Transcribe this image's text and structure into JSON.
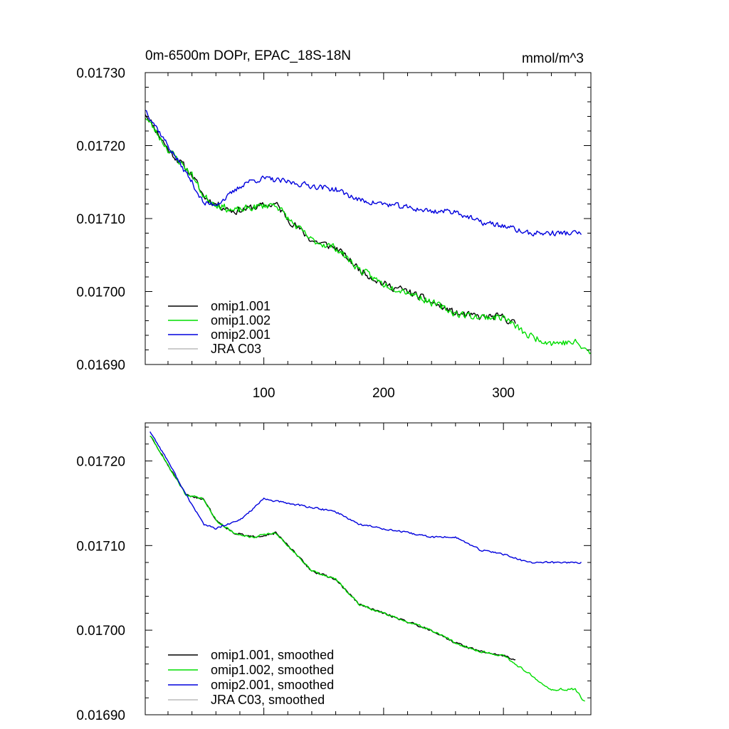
{
  "chart_data": [
    {
      "type": "line",
      "title_left": "0m-6500m DOPr, EPAC_18S-18N",
      "title_right": "mmol/m^3",
      "xlim": [
        1,
        373
      ],
      "ylim": [
        0.0169,
        0.0173
      ],
      "xticks": [
        100,
        200,
        300
      ],
      "xtick_labels": [
        "100",
        "200",
        "300"
      ],
      "yticks": [
        0.0169,
        0.017,
        0.0171,
        0.0172,
        0.0173
      ],
      "ytick_labels": [
        "0.01690",
        "0.01700",
        "0.01710",
        "0.01720",
        "0.01730"
      ],
      "series": [
        {
          "name": "omip1.001",
          "color": "#000000",
          "n": 310,
          "noise": 4.5e-06,
          "seed": 11,
          "knots": [
            [
              1,
              0.017245
            ],
            [
              20,
              0.017195
            ],
            [
              40,
              0.01716
            ],
            [
              50,
              0.01713
            ],
            [
              60,
              0.01712
            ],
            [
              75,
              0.01711
            ],
            [
              90,
              0.017115
            ],
            [
              110,
              0.01712
            ],
            [
              120,
              0.0171
            ],
            [
              140,
              0.01707
            ],
            [
              160,
              0.01706
            ],
            [
              180,
              0.01703
            ],
            [
              200,
              0.01701
            ],
            [
              220,
              0.017
            ],
            [
              240,
              0.016985
            ],
            [
              260,
              0.01697
            ],
            [
              280,
              0.016965
            ],
            [
              300,
              0.016965
            ],
            [
              310,
              0.016955
            ]
          ]
        },
        {
          "name": "omip1.002",
          "color": "#00dd00",
          "n": 373,
          "noise": 4.5e-06,
          "seed": 23,
          "knots": [
            [
              1,
              0.01724
            ],
            [
              20,
              0.017195
            ],
            [
              40,
              0.01716
            ],
            [
              50,
              0.01713
            ],
            [
              60,
              0.01712
            ],
            [
              75,
              0.01711
            ],
            [
              90,
              0.017115
            ],
            [
              110,
              0.01712
            ],
            [
              120,
              0.0171
            ],
            [
              140,
              0.01707
            ],
            [
              160,
              0.01706
            ],
            [
              180,
              0.01703
            ],
            [
              200,
              0.01701
            ],
            [
              220,
              0.017
            ],
            [
              240,
              0.016985
            ],
            [
              260,
              0.01697
            ],
            [
              280,
              0.016965
            ],
            [
              300,
              0.016965
            ],
            [
              320,
              0.01694
            ],
            [
              340,
              0.01693
            ],
            [
              360,
              0.01693
            ],
            [
              373,
              0.016915
            ]
          ]
        },
        {
          "name": "omip2.001",
          "color": "#0000dd",
          "n": 365,
          "noise": 3.5e-06,
          "seed": 37,
          "knots": [
            [
              1,
              0.01725
            ],
            [
              20,
              0.0172
            ],
            [
              40,
              0.01715
            ],
            [
              50,
              0.01712
            ],
            [
              60,
              0.01712
            ],
            [
              70,
              0.01713
            ],
            [
              85,
              0.01715
            ],
            [
              100,
              0.017155
            ],
            [
              120,
              0.01715
            ],
            [
              140,
              0.017145
            ],
            [
              160,
              0.01714
            ],
            [
              180,
              0.017125
            ],
            [
              200,
              0.01712
            ],
            [
              220,
              0.017115
            ],
            [
              240,
              0.01711
            ],
            [
              260,
              0.01711
            ],
            [
              280,
              0.017095
            ],
            [
              300,
              0.01709
            ],
            [
              320,
              0.01708
            ],
            [
              340,
              0.01708
            ],
            [
              365,
              0.01708
            ]
          ]
        },
        {
          "name": "JRA C03",
          "color": "#bbbbbb",
          "n": 0,
          "noise": 0,
          "seed": 1,
          "knots": []
        }
      ],
      "legend": [
        "omip1.001",
        "omip1.002",
        "omip2.001",
        "JRA C03"
      ]
    },
    {
      "type": "line",
      "xlim": [
        1,
        373
      ],
      "ylim": [
        0.0169,
        0.017245
      ],
      "xticks": [
        100,
        200,
        300
      ],
      "yticks": [
        0.0169,
        0.017,
        0.0171,
        0.0172
      ],
      "ytick_labels": [
        "0.01690",
        "0.01700",
        "0.01710",
        "0.01720"
      ],
      "series": [
        {
          "name": "omip1.001, smoothed",
          "color": "#000000",
          "n": 310,
          "noise": 1.2e-06,
          "seed": 51,
          "knots": [
            [
              5,
              0.01723
            ],
            [
              20,
              0.017195
            ],
            [
              35,
              0.01716
            ],
            [
              50,
              0.017155
            ],
            [
              60,
              0.01713
            ],
            [
              75,
              0.017115
            ],
            [
              90,
              0.01711
            ],
            [
              110,
              0.017115
            ],
            [
              120,
              0.0171
            ],
            [
              140,
              0.01707
            ],
            [
              160,
              0.01706
            ],
            [
              180,
              0.01703
            ],
            [
              200,
              0.01702
            ],
            [
              220,
              0.01701
            ],
            [
              240,
              0.017
            ],
            [
              260,
              0.016985
            ],
            [
              280,
              0.016975
            ],
            [
              300,
              0.01697
            ],
            [
              310,
              0.016965
            ]
          ]
        },
        {
          "name": "omip1.002, smoothed",
          "color": "#00dd00",
          "n": 368,
          "noise": 1.2e-06,
          "seed": 63,
          "knots": [
            [
              5,
              0.01723
            ],
            [
              20,
              0.017195
            ],
            [
              35,
              0.01716
            ],
            [
              50,
              0.017155
            ],
            [
              60,
              0.01713
            ],
            [
              75,
              0.017115
            ],
            [
              90,
              0.01711
            ],
            [
              110,
              0.017115
            ],
            [
              120,
              0.0171
            ],
            [
              140,
              0.01707
            ],
            [
              160,
              0.01706
            ],
            [
              180,
              0.01703
            ],
            [
              200,
              0.01702
            ],
            [
              220,
              0.01701
            ],
            [
              240,
              0.017
            ],
            [
              260,
              0.016985
            ],
            [
              280,
              0.016975
            ],
            [
              300,
              0.01697
            ],
            [
              320,
              0.01695
            ],
            [
              340,
              0.01693
            ],
            [
              360,
              0.01693
            ],
            [
              368,
              0.016915
            ]
          ]
        },
        {
          "name": "omip2.001, smoothed",
          "color": "#0000dd",
          "n": 365,
          "noise": 1e-06,
          "seed": 77,
          "knots": [
            [
              5,
              0.017235
            ],
            [
              20,
              0.0172
            ],
            [
              35,
              0.01716
            ],
            [
              50,
              0.017125
            ],
            [
              60,
              0.01712
            ],
            [
              80,
              0.01713
            ],
            [
              100,
              0.017155
            ],
            [
              120,
              0.01715
            ],
            [
              140,
              0.017145
            ],
            [
              160,
              0.01714
            ],
            [
              180,
              0.017125
            ],
            [
              200,
              0.01712
            ],
            [
              220,
              0.017115
            ],
            [
              240,
              0.01711
            ],
            [
              260,
              0.01711
            ],
            [
              280,
              0.017095
            ],
            [
              300,
              0.01709
            ],
            [
              320,
              0.01708
            ],
            [
              340,
              0.01708
            ],
            [
              365,
              0.01708
            ]
          ]
        },
        {
          "name": "JRA C03, smoothed",
          "color": "#bbbbbb",
          "n": 0,
          "noise": 0,
          "seed": 1,
          "knots": []
        }
      ],
      "legend": [
        "omip1.001, smoothed",
        "omip1.002, smoothed",
        "omip2.001, smoothed",
        "JRA C03, smoothed"
      ]
    }
  ]
}
